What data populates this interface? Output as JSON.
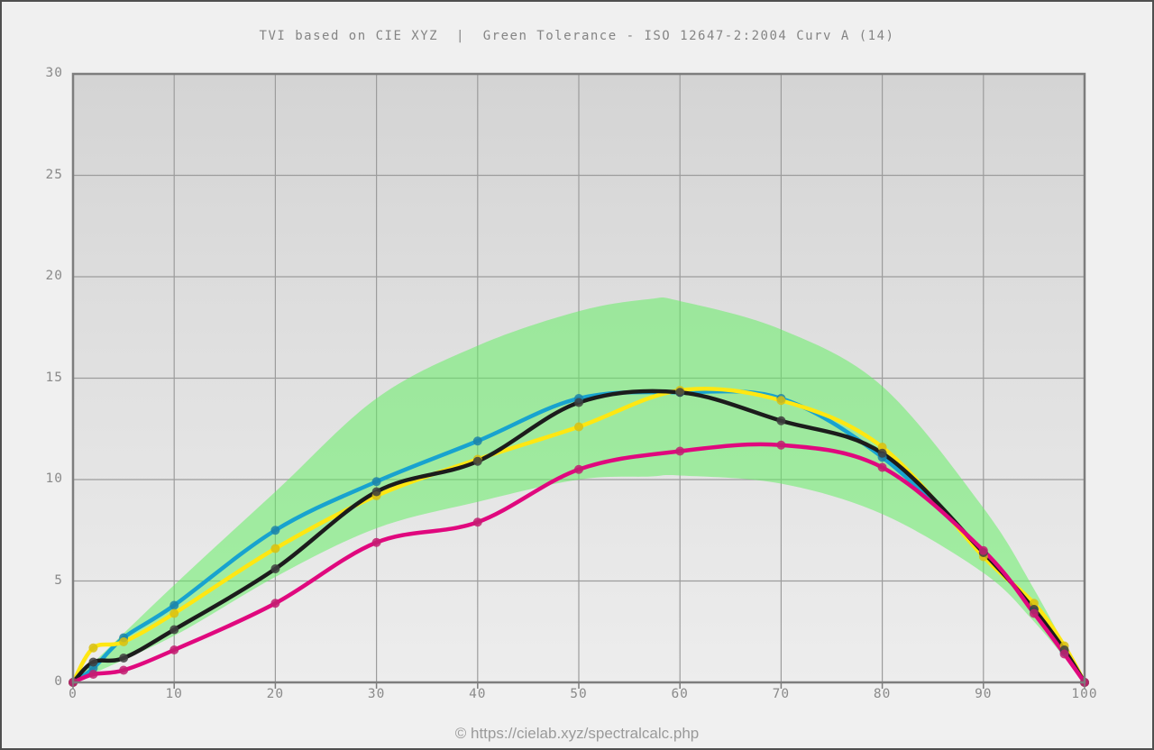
{
  "title": "TVI based on CIE XYZ  |  Green Tolerance - ISO 12647-2:2004 Curv A (14)",
  "footer": "© https://cielab.xyz/spectralcalc.php",
  "colors": {
    "page_bg": "#f0f0f0",
    "frame_border": "#4f4f4f",
    "plot_bg_top": "#d4d4d4",
    "plot_bg_bottom": "#ededed",
    "grid": "#9c9c9c",
    "plot_border": "#7d7d7d",
    "title_text": "#848484",
    "tick_text": "#8a8a8a",
    "footer_text": "#9a9a9a"
  },
  "chart_data": {
    "type": "line",
    "title": "TVI based on CIE XYZ  |  Green Tolerance - ISO 12647-2:2004 Curv A (14)",
    "xlabel": "",
    "ylabel": "",
    "x_range": [
      0,
      100
    ],
    "y_range": [
      0,
      30
    ],
    "x_ticks": [
      0,
      10,
      20,
      30,
      40,
      50,
      60,
      70,
      80,
      90,
      100
    ],
    "y_ticks": [
      0,
      5,
      10,
      15,
      20,
      25,
      30
    ],
    "grid": true,
    "legend_position": "none",
    "x": [
      0,
      2,
      5,
      10,
      20,
      30,
      40,
      50,
      60,
      70,
      80,
      90,
      95,
      98,
      100
    ],
    "series": [
      {
        "name": "cyan",
        "color": "#18a3cf",
        "marker_color": "#1d84a8",
        "values": [
          0,
          0.7,
          2.2,
          3.8,
          7.5,
          9.9,
          11.9,
          14.0,
          14.3,
          14.0,
          11.1,
          6.4,
          3.6,
          1.5,
          0
        ]
      },
      {
        "name": "yellow",
        "color": "#ffe712",
        "marker_color": "#d8c013",
        "values": [
          0,
          1.7,
          2.0,
          3.4,
          6.6,
          9.2,
          11.0,
          12.6,
          14.4,
          13.9,
          11.6,
          6.2,
          3.9,
          1.8,
          0
        ]
      },
      {
        "name": "black",
        "color": "#1c1c1c",
        "marker_color": "#3f3f3f",
        "values": [
          0,
          1.0,
          1.2,
          2.6,
          5.6,
          9.4,
          10.9,
          13.8,
          14.3,
          12.9,
          11.3,
          6.4,
          3.6,
          1.6,
          0
        ]
      },
      {
        "name": "magenta",
        "color": "#e0087e",
        "marker_color": "#c21e71",
        "values": [
          0,
          0.4,
          0.6,
          1.6,
          3.9,
          6.9,
          7.9,
          10.5,
          11.4,
          11.7,
          10.6,
          6.5,
          3.4,
          1.4,
          0
        ]
      }
    ],
    "tolerance_band": {
      "name": "Green Tolerance - ISO 12647-2:2004 Curv A (14)",
      "color": "rgba(102,238,102,0.55)",
      "x": [
        0,
        10,
        20,
        30,
        40,
        50,
        57,
        60,
        70,
        80,
        90,
        95,
        100
      ],
      "upper": [
        0,
        4.8,
        9.4,
        14.0,
        16.6,
        18.3,
        18.9,
        18.8,
        17.4,
        14.6,
        8.6,
        4.6,
        0
      ],
      "lower": [
        0,
        2.3,
        5.2,
        7.6,
        8.9,
        10.0,
        10.15,
        10.2,
        9.8,
        8.3,
        5.4,
        3.0,
        0
      ]
    },
    "line_width": 4.5,
    "marker_radius": 5
  }
}
